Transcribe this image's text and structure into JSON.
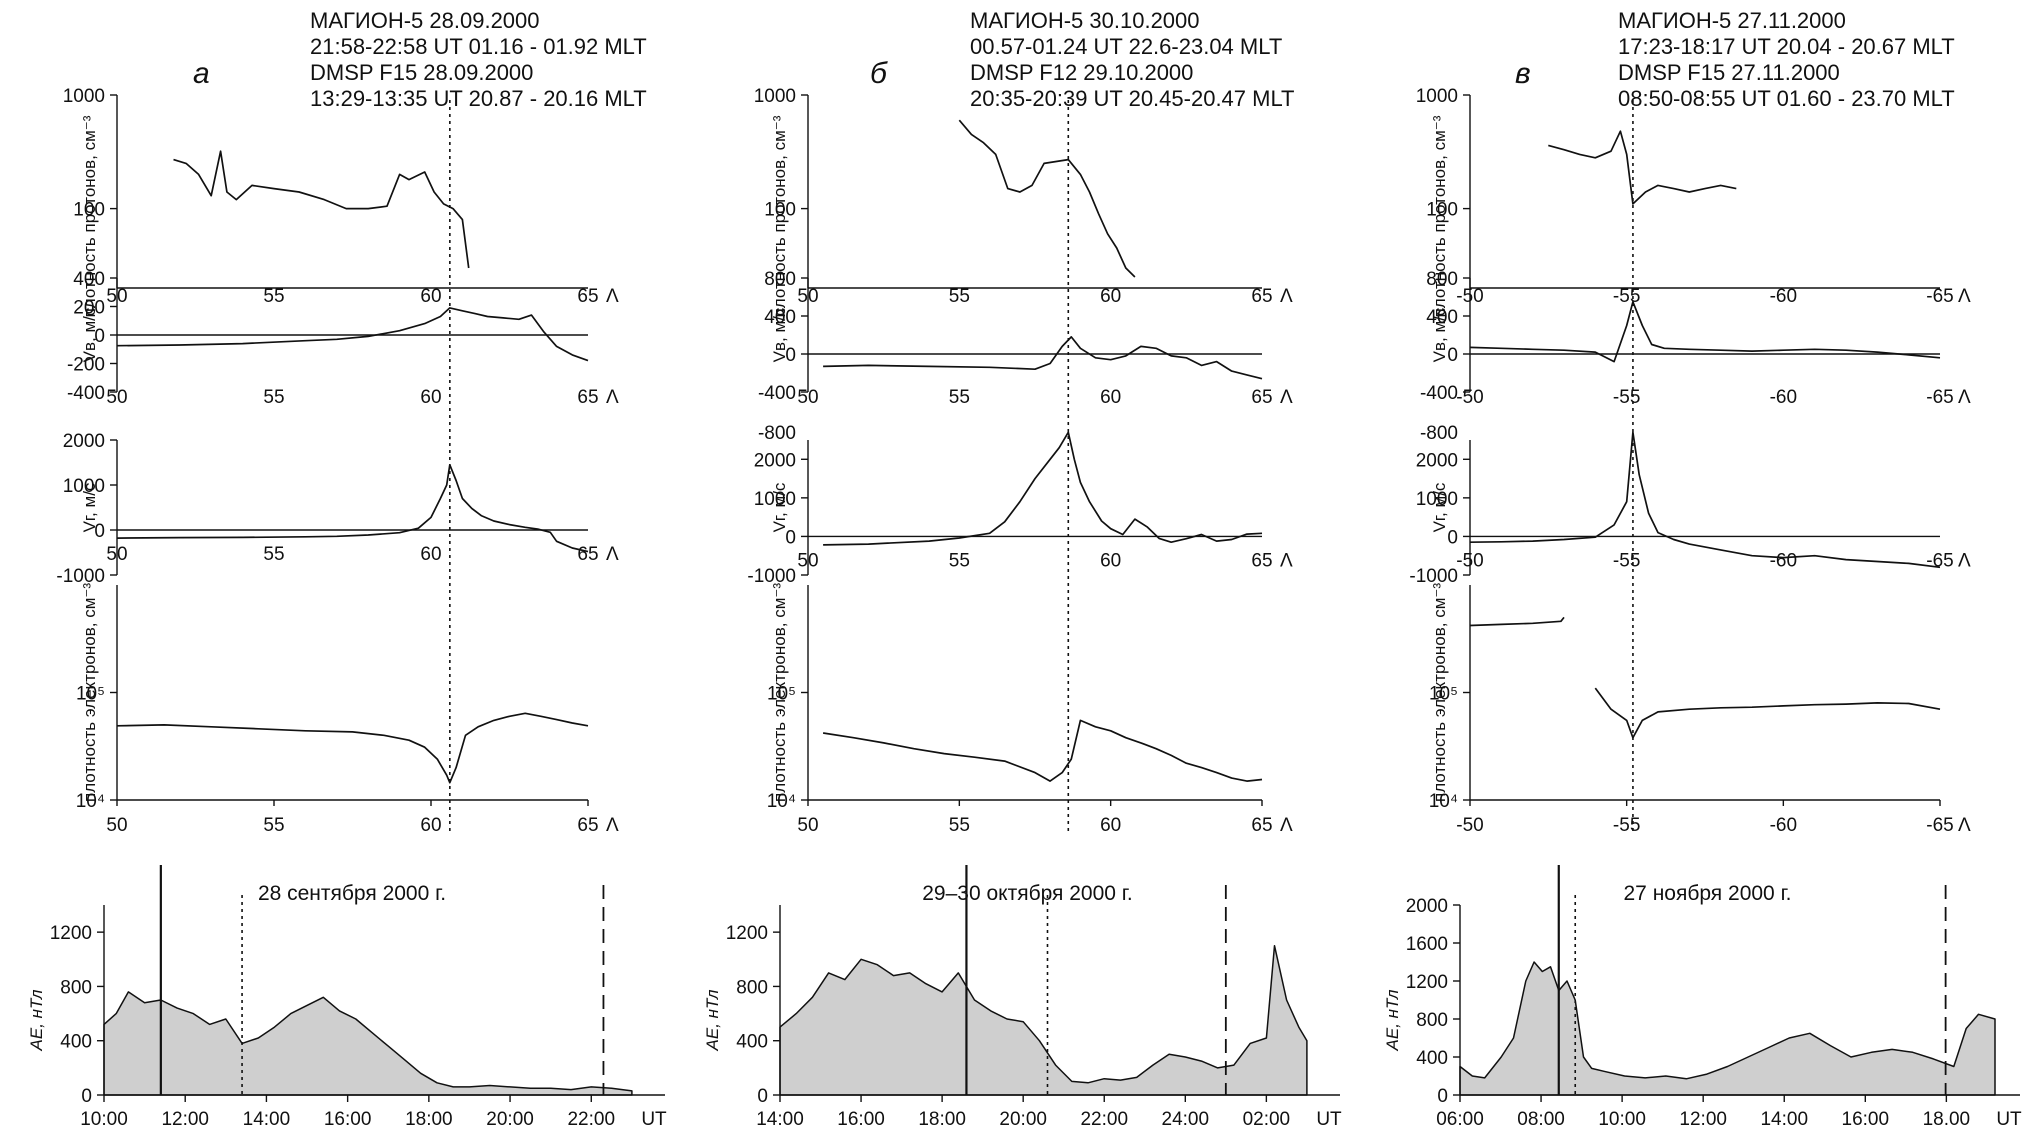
{
  "chart_data": [
    {
      "panel": "а",
      "header": [
        "МАГИОН-5 28.09.2000",
        "21:58-22:58 UT 01.16 - 01.92 MLT",
        "DMSP F15  28.09.2000",
        "13:29-13:35 UT  20.87 - 20.16 MLT"
      ],
      "x_symbol": "Λ",
      "xticks": [
        "50",
        "55",
        "60",
        "65"
      ],
      "xlim": [
        50,
        65
      ],
      "marker_x": 60.6,
      "proton_density": {
        "type": "line",
        "ylabel": "плотность протонов, см⁻³",
        "ylim": [
          20,
          1000
        ],
        "yscale": "log",
        "yticks": [
          "1000",
          "100"
        ],
        "x": [
          51.8,
          52.2,
          52.6,
          53,
          53.3,
          53.5,
          53.8,
          54.3,
          55,
          55.8,
          56.6,
          57.3,
          58,
          58.6,
          59,
          59.3,
          59.8,
          60.1,
          60.4,
          60.7,
          61,
          61.2
        ],
        "y": [
          270,
          250,
          200,
          130,
          320,
          140,
          120,
          160,
          150,
          140,
          120,
          100,
          100,
          105,
          200,
          180,
          210,
          140,
          110,
          100,
          80,
          30
        ]
      },
      "v_east": {
        "type": "line",
        "ylabel": "Vв, м/с",
        "ylim": [
          -400,
          400
        ],
        "yticks": [
          "400",
          "200",
          "0",
          "-200",
          "-400"
        ],
        "x": [
          50,
          52,
          54,
          56,
          57,
          58,
          59,
          59.8,
          60.3,
          60.6,
          61,
          61.4,
          61.8,
          62.3,
          62.8,
          63.2,
          63.6,
          64,
          64.5,
          65
        ],
        "y": [
          -75,
          -70,
          -60,
          -40,
          -30,
          -10,
          30,
          80,
          130,
          190,
          170,
          150,
          130,
          120,
          110,
          140,
          20,
          -80,
          -140,
          -180
        ]
      },
      "v_north": {
        "type": "line",
        "ylabel": "Vг, м/с",
        "ylim": [
          -1000,
          2000
        ],
        "yticks": [
          "2000",
          "1000",
          "0",
          "-1000"
        ],
        "x": [
          50,
          52,
          54,
          56,
          57,
          58,
          59,
          59.6,
          60,
          60.3,
          60.5,
          60.6,
          60.8,
          61,
          61.3,
          61.6,
          62,
          62.5,
          63,
          63.4,
          63.8,
          64,
          64.5,
          65
        ],
        "y": [
          -180,
          -170,
          -165,
          -150,
          -140,
          -110,
          -60,
          40,
          280,
          700,
          1000,
          1450,
          1100,
          700,
          480,
          320,
          200,
          120,
          60,
          20,
          -50,
          -250,
          -400,
          -480
        ]
      },
      "electron_density": {
        "type": "line",
        "ylabel": "плотность электронов, см⁻³",
        "ylim": [
          10000,
          1000000
        ],
        "yscale": "log",
        "yticks": [
          "10⁵",
          "10⁴"
        ],
        "x": [
          50,
          51.5,
          53,
          54.5,
          56,
          57.5,
          58.5,
          59.3,
          59.8,
          60.2,
          60.5,
          60.6,
          60.8,
          61.1,
          61.5,
          62,
          62.5,
          63,
          63.5,
          64,
          64.5,
          65
        ],
        "y": [
          49000,
          50000,
          48000,
          46000,
          44000,
          43000,
          40000,
          36000,
          31000,
          24000,
          17000,
          14500,
          20000,
          40000,
          48000,
          55000,
          60000,
          64000,
          60000,
          56000,
          52000,
          49000
        ]
      },
      "ae": {
        "title": "28 сентября 2000 г.",
        "ylabel": "AE, нТл",
        "ylim": [
          0,
          1400
        ],
        "yticks": [
          "1200",
          "800",
          "400",
          "0"
        ],
        "xticks": [
          "10:00",
          "12:00",
          "14:00",
          "16:00",
          "18:00",
          "20:00",
          "22:00",
          "UT"
        ],
        "xlim_hours": [
          10,
          23.2
        ],
        "t": [
          10,
          10.3,
          10.6,
          11,
          11.4,
          11.8,
          12.2,
          12.6,
          13,
          13.4,
          13.8,
          14.2,
          14.6,
          15,
          15.4,
          15.8,
          16.2,
          16.6,
          17,
          17.4,
          17.8,
          18.2,
          18.6,
          19,
          19.5,
          20,
          20.5,
          21,
          21.5,
          22,
          22.5,
          23
        ],
        "ae": [
          520,
          600,
          760,
          680,
          700,
          640,
          600,
          520,
          560,
          380,
          420,
          500,
          600,
          660,
          720,
          620,
          560,
          460,
          360,
          260,
          160,
          90,
          60,
          60,
          70,
          60,
          50,
          50,
          40,
          60,
          50,
          30
        ],
        "solid_marker": 11.4,
        "dotted_marker": 13.4,
        "dashed_marker": 22.3
      }
    },
    {
      "panel": "б",
      "header": [
        "МАГИОН-5 30.10.2000",
        "00.57-01.24 UT 22.6-23.04 MLT",
        "DMSP F12  29.10.2000",
        "20:35-20:39 UT 20.45-20.47 MLT"
      ],
      "x_symbol": "Λ",
      "xticks": [
        "50",
        "55",
        "60",
        "65"
      ],
      "xlim": [
        50,
        65
      ],
      "marker_x": 58.6,
      "proton_density": {
        "type": "line",
        "ylabel": "плотность протонов, см⁻³",
        "ylim": [
          20,
          1000
        ],
        "yscale": "log",
        "yticks": [
          "1000",
          "100"
        ],
        "x": [
          55,
          55.4,
          55.8,
          56.2,
          56.6,
          57,
          57.4,
          57.8,
          58.2,
          58.6,
          59,
          59.3,
          59.6,
          59.9,
          60.2,
          60.5,
          60.8
        ],
        "y": [
          600,
          450,
          380,
          300,
          150,
          140,
          160,
          250,
          260,
          270,
          200,
          140,
          90,
          60,
          45,
          30,
          25
        ]
      },
      "v_east": {
        "type": "line",
        "ylabel": "Vв, м/с",
        "ylim": [
          -400,
          800
        ],
        "yticks": [
          "800",
          "400",
          "0",
          "-400",
          "-800"
        ],
        "x": [
          50.5,
          52,
          54,
          56,
          57.5,
          58,
          58.4,
          58.7,
          59,
          59.5,
          60,
          60.5,
          61,
          61.5,
          62,
          62.5,
          63,
          63.5,
          64,
          64.5,
          65
        ],
        "y": [
          -130,
          -120,
          -130,
          -140,
          -160,
          -100,
          80,
          180,
          60,
          -40,
          -60,
          -20,
          80,
          60,
          -20,
          -40,
          -120,
          -80,
          -180,
          -220,
          -260
        ]
      },
      "v_north": {
        "type": "line",
        "ylabel": "Vг, м/с",
        "ylim": [
          -1000,
          2500
        ],
        "yticks": [
          "2000",
          "1000",
          "0",
          "-1000"
        ],
        "x": [
          50.5,
          52,
          54,
          55,
          56,
          56.5,
          57,
          57.5,
          58,
          58.3,
          58.6,
          58.8,
          59,
          59.3,
          59.7,
          60,
          60.4,
          60.8,
          61.2,
          61.6,
          62,
          62.5,
          63,
          63.5,
          64,
          64.5,
          65
        ],
        "y": [
          -220,
          -200,
          -120,
          -40,
          80,
          380,
          900,
          1500,
          2000,
          2300,
          2700,
          2000,
          1400,
          900,
          400,
          200,
          50,
          450,
          250,
          -50,
          -150,
          -60,
          50,
          -120,
          -80,
          60,
          80
        ]
      },
      "electron_density": {
        "type": "line",
        "ylabel": "плотность электронов, см⁻³",
        "ylim": [
          10000,
          1000000
        ],
        "yscale": "log",
        "yticks": [
          "10⁵",
          "10⁴"
        ],
        "x": [
          50.5,
          51.5,
          52.5,
          53.5,
          54.5,
          55.5,
          56.5,
          57.5,
          58,
          58.4,
          58.7,
          59,
          59.5,
          60,
          60.5,
          61,
          61.5,
          62,
          62.5,
          63,
          63.5,
          64,
          64.5,
          65
        ],
        "y": [
          42000,
          38000,
          34000,
          30000,
          27000,
          25000,
          23000,
          18000,
          15000,
          18000,
          24000,
          55000,
          48000,
          44000,
          38000,
          34000,
          30000,
          26000,
          22000,
          20000,
          18000,
          16000,
          15000,
          15500
        ]
      },
      "ae": {
        "title": "29–30 октября 2000 г.",
        "ylabel": "AE, нТл",
        "ylim": [
          0,
          1400
        ],
        "yticks": [
          "1200",
          "800",
          "400",
          "0"
        ],
        "xticks": [
          "14:00",
          "16:00",
          "18:00",
          "20:00",
          "22:00",
          "24:00",
          "02:00",
          "UT"
        ],
        "xlim_hours": [
          14,
          27.2
        ],
        "t": [
          14,
          14.4,
          14.8,
          15.2,
          15.6,
          16,
          16.4,
          16.8,
          17.2,
          17.6,
          18,
          18.4,
          18.8,
          19.2,
          19.6,
          20,
          20.4,
          20.8,
          21.2,
          21.6,
          22,
          22.4,
          22.8,
          23.2,
          23.6,
          24,
          24.4,
          24.8,
          25.2,
          25.6,
          26,
          26.2,
          26.5,
          26.8,
          27
        ],
        "ae": [
          500,
          600,
          720,
          900,
          850,
          1000,
          960,
          880,
          900,
          820,
          760,
          900,
          700,
          620,
          560,
          540,
          400,
          220,
          100,
          90,
          120,
          110,
          130,
          220,
          300,
          280,
          250,
          200,
          220,
          380,
          420,
          1100,
          700,
          500,
          400
        ],
        "solid_marker": 18.6,
        "dotted_marker": 20.6,
        "dashed_marker": 25
      }
    },
    {
      "panel": "в",
      "header": [
        "МАГИОН-5 27.11.2000",
        "17:23-18:17 UT 20.04 - 20.67 MLT",
        "DMSP F15  27.11.2000",
        "08:50-08:55 UT 01.60 - 23.70 MLT"
      ],
      "x_symbol": "Λ",
      "xticks": [
        "-50",
        "-55",
        "-60",
        "-65"
      ],
      "xlim": [
        -50,
        -65
      ],
      "marker_x": -55.2,
      "proton_density": {
        "type": "line",
        "ylabel": "плотность протонов, см⁻³",
        "ylim": [
          20,
          1000
        ],
        "yscale": "log",
        "yticks": [
          "1000",
          "100"
        ],
        "x": [
          -52.5,
          -53,
          -53.5,
          -54,
          -54.5,
          -54.8,
          -55,
          -55.2,
          -55.6,
          -56,
          -56.5,
          -57,
          -57.5,
          -58,
          -58.5
        ],
        "y": [
          360,
          330,
          300,
          280,
          320,
          480,
          300,
          110,
          140,
          160,
          150,
          140,
          150,
          160,
          150
        ]
      },
      "v_east": {
        "type": "line",
        "ylabel": "Vв, м/с",
        "ylim": [
          -400,
          800
        ],
        "yticks": [
          "800",
          "400",
          "0",
          "-400",
          "-800"
        ],
        "x": [
          -50,
          -51,
          -52,
          -53,
          -54,
          -54.6,
          -55,
          -55.2,
          -55.5,
          -55.8,
          -56.2,
          -57,
          -58,
          -59,
          -60,
          -61,
          -62,
          -63,
          -64,
          -65
        ],
        "y": [
          70,
          60,
          50,
          40,
          20,
          -80,
          300,
          550,
          300,
          100,
          60,
          50,
          40,
          30,
          40,
          50,
          40,
          20,
          -10,
          -40
        ]
      },
      "v_north": {
        "type": "line",
        "ylabel": "Vг, м/с",
        "ylim": [
          -1000,
          2500
        ],
        "yticks": [
          "2000",
          "1000",
          "0",
          "-1000"
        ],
        "x": [
          -50,
          -51,
          -52,
          -53,
          -54,
          -54.6,
          -55,
          -55.2,
          -55.4,
          -55.7,
          -56,
          -56.5,
          -57,
          -58,
          -59,
          -60,
          -61,
          -62,
          -63,
          -64,
          -65
        ],
        "y": [
          -150,
          -140,
          -120,
          -80,
          -20,
          300,
          900,
          2700,
          1600,
          600,
          100,
          -80,
          -200,
          -350,
          -500,
          -550,
          -500,
          -600,
          -650,
          -700,
          -800
        ]
      },
      "electron_density": {
        "type": "line",
        "ylabel": "плотность электронов, см⁻³",
        "ylim": [
          10000,
          1000000
        ],
        "yscale": "log",
        "yticks": [
          "10⁵",
          "10⁴"
        ],
        "x": [
          -50,
          -51,
          -52,
          -52.9,
          -53,
          null,
          -54,
          -54.5,
          -55,
          -55.2,
          -55.5,
          -56,
          -57,
          -58,
          -59,
          -60,
          -61,
          -62,
          -63,
          -64,
          -65
        ],
        "y": [
          420000,
          430000,
          440000,
          460000,
          500000,
          null,
          110000,
          70000,
          55000,
          38000,
          55000,
          66000,
          70000,
          72000,
          73000,
          75000,
          77000,
          78000,
          80000,
          79000,
          70000
        ]
      },
      "ae": {
        "title": "27 ноября 2000 г.",
        "ylabel": "AE, нТл",
        "ylim": [
          0,
          2000
        ],
        "yticks": [
          "2000",
          "1600",
          "1200",
          "800",
          "400",
          "0"
        ],
        "xticks": [
          "06:00",
          "08:00",
          "10:00",
          "12:00",
          "14:00",
          "16:00",
          "18.00",
          "UT"
        ],
        "xlim_hours": [
          6,
          19
        ],
        "t": [
          6,
          6.3,
          6.6,
          7,
          7.3,
          7.6,
          7.8,
          8,
          8.2,
          8.4,
          8.6,
          8.8,
          9,
          9.2,
          9.5,
          10,
          10.5,
          11,
          11.5,
          12,
          12.5,
          13,
          13.5,
          14,
          14.5,
          15,
          15.5,
          16,
          16.5,
          17,
          17.5,
          18,
          18.3,
          18.6,
          19
        ],
        "ae": [
          300,
          200,
          180,
          400,
          600,
          1200,
          1400,
          1300,
          1350,
          1100,
          1200,
          1000,
          400,
          280,
          250,
          200,
          180,
          200,
          170,
          220,
          300,
          400,
          500,
          600,
          650,
          520,
          400,
          450,
          480,
          450,
          380,
          300,
          700,
          850,
          800
        ],
        "solid_marker": 8.4,
        "dotted_marker": 8.8,
        "dashed_marker": 17.8
      }
    }
  ]
}
